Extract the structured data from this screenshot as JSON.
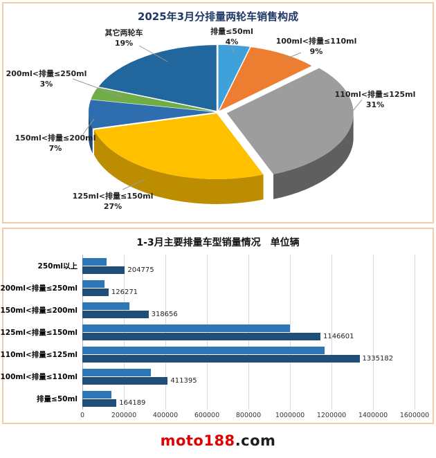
{
  "footer": {
    "brand": "moto188",
    "suffix": ".com"
  },
  "chart_data": [
    {
      "type": "pie",
      "style": "3d-exploded",
      "title": "2025年3月分排量两轮车销售构成",
      "unit": "%",
      "legend_position": "none",
      "slices": [
        {
          "label": "排量≤50ml",
          "value": 4,
          "pct_label": "4%",
          "color": "#3fa0da",
          "side_color": "#2b77a6"
        },
        {
          "label": "100ml<排量≤110ml",
          "value": 9,
          "pct_label": "9%",
          "color": "#ed7d31",
          "side_color": "#b55a1b"
        },
        {
          "label": "110ml<排量≤125ml",
          "value": 31,
          "pct_label": "31%",
          "color": "#9d9d9d",
          "side_color": "#5f5f5f"
        },
        {
          "label": "125ml<排量≤150ml",
          "value": 27,
          "pct_label": "27%",
          "color": "#ffc000",
          "side_color": "#bc8d00"
        },
        {
          "label": "150ml<排量≤200ml",
          "value": 7,
          "pct_label": "7%",
          "color": "#2e6dae",
          "side_color": "#1f4c7a"
        },
        {
          "label": "200ml<排量≤250ml",
          "value": 3,
          "pct_label": "3%",
          "color": "#70ad47",
          "side_color": "#507d32"
        },
        {
          "label": "其它两轮车",
          "value": 19,
          "pct_label": "19%",
          "color": "#21679e",
          "side_color": "#164769"
        }
      ]
    },
    {
      "type": "bar",
      "orientation": "horizontal",
      "title": "1-3月主要排量车型销量情况　单位辆",
      "categories": [
        "250ml以上",
        "200ml<排量≤250ml",
        "150ml<排量≤200ml",
        "125ml<排量≤150ml",
        "110ml<排量≤125ml",
        "100ml<排量≤110ml",
        "排量≤50ml"
      ],
      "series": [
        {
          "name": "",
          "color": "#2e75b6",
          "values": [
            115000,
            105000,
            225000,
            1000000,
            1165000,
            330000,
            140000
          ]
        },
        {
          "name": "",
          "color": "#1f4e79",
          "values": [
            204775,
            126271,
            318656,
            1146601,
            1335182,
            411395,
            164189
          ],
          "labels": [
            "204775",
            "126271",
            "318656",
            "1146601",
            "1335182",
            "411395",
            "164189"
          ]
        }
      ],
      "xlim": [
        0,
        1600000
      ],
      "xtick_labels": [
        "0",
        "200000",
        "400000",
        "600000",
        "800000",
        "1000000",
        "1200000",
        "1400000",
        "1600000"
      ],
      "grid": true
    }
  ]
}
